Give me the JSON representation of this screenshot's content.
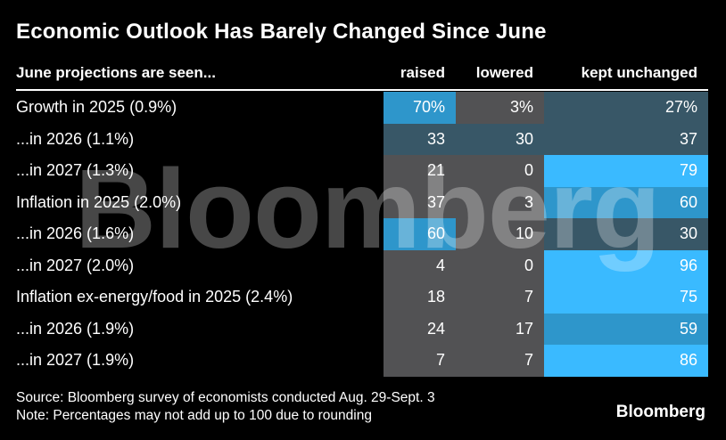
{
  "title": "Economic Outlook Has Barely Changed Since June",
  "header": {
    "label": "June projections are seen...",
    "columns": [
      "raised",
      "lowered",
      "kept unchanged"
    ]
  },
  "palette": {
    "background": "#000000",
    "text": "#ffffff",
    "cell_gray": "#525254",
    "cell_slate": "#385767",
    "cell_blue": "#2e96cb",
    "cell_bright_blue": "#3abaff",
    "watermark": "rgba(255,255,255,0.28)"
  },
  "table": {
    "rows": [
      {
        "label": "Growth in 2025 (0.9%)",
        "raised": "70%",
        "lowered": "3%",
        "kept": "27%",
        "colors": {
          "raised": "cell_blue",
          "lowered": "cell_gray",
          "kept": "cell_slate"
        }
      },
      {
        "label": "...in 2026 (1.1%)",
        "raised": "33",
        "lowered": "30",
        "kept": "37",
        "colors": {
          "raised": "cell_slate",
          "lowered": "cell_slate",
          "kept": "cell_slate"
        }
      },
      {
        "label": "...in 2027 (1.3%)",
        "raised": "21",
        "lowered": "0",
        "kept": "79",
        "colors": {
          "raised": "cell_gray",
          "lowered": "cell_gray",
          "kept": "cell_bright_blue"
        }
      },
      {
        "label": "Inflation in 2025 (2.0%)",
        "raised": "37",
        "lowered": "3",
        "kept": "60",
        "colors": {
          "raised": "cell_gray",
          "lowered": "cell_gray",
          "kept": "cell_blue"
        }
      },
      {
        "label": "...in 2026 (1.6%)",
        "raised": "60",
        "lowered": "10",
        "kept": "30",
        "colors": {
          "raised": "cell_blue",
          "lowered": "cell_gray",
          "kept": "cell_slate"
        }
      },
      {
        "label": "...in 2027 (2.0%)",
        "raised": "4",
        "lowered": "0",
        "kept": "96",
        "colors": {
          "raised": "cell_gray",
          "lowered": "cell_gray",
          "kept": "cell_bright_blue"
        }
      },
      {
        "label": "Inflation ex-energy/food in 2025 (2.4%)",
        "raised": "18",
        "lowered": "7",
        "kept": "75",
        "colors": {
          "raised": "cell_gray",
          "lowered": "cell_gray",
          "kept": "cell_bright_blue"
        }
      },
      {
        "label": "...in 2026 (1.9%)",
        "raised": "24",
        "lowered": "17",
        "kept": "59",
        "colors": {
          "raised": "cell_gray",
          "lowered": "cell_gray",
          "kept": "cell_blue"
        }
      },
      {
        "label": "...in 2027 (1.9%)",
        "raised": "7",
        "lowered": "7",
        "kept": "86",
        "colors": {
          "raised": "cell_gray",
          "lowered": "cell_gray",
          "kept": "cell_bright_blue"
        }
      }
    ]
  },
  "watermark_text": "Bloomberg",
  "footer": {
    "source": "Source: Bloomberg survey of economists conducted Aug. 29-Sept. 3",
    "note": "Note: Percentages may not add up to 100 due to rounding",
    "logo": "Bloomberg"
  },
  "chart_data": {
    "type": "heatmap",
    "title": "Economic Outlook Has Barely Changed Since June",
    "row_axis_label": "June projections are seen...",
    "columns": [
      "raised",
      "lowered",
      "kept unchanged"
    ],
    "rows": [
      "Growth in 2025 (0.9%)",
      "...in 2026 (1.1%)",
      "...in 2027 (1.3%)",
      "Inflation in 2025 (2.0%)",
      "...in 2026 (1.6%)",
      "...in 2027 (2.0%)",
      "Inflation ex-energy/food in 2025 (2.4%)",
      "...in 2026 (1.9%)",
      "...in 2027 (1.9%)"
    ],
    "values": [
      [
        70,
        3,
        27
      ],
      [
        33,
        30,
        37
      ],
      [
        21,
        0,
        79
      ],
      [
        37,
        3,
        60
      ],
      [
        60,
        10,
        30
      ],
      [
        4,
        0,
        96
      ],
      [
        18,
        7,
        75
      ],
      [
        24,
        17,
        59
      ],
      [
        7,
        7,
        86
      ]
    ],
    "unit": "percent of economists",
    "value_range": [
      0,
      100
    ],
    "legend_position": "none",
    "color_scale": {
      "gray #525254": "low values (~0-24)",
      "slate #385767": "mid-low values (~27-37)",
      "blue #2e96cb": "mid-high values (~59-70)",
      "bright blue #3abaff": "high values (~75-96)"
    },
    "annotations": [
      "First data row displays % signs (70%, 3%, 27%)"
    ]
  }
}
